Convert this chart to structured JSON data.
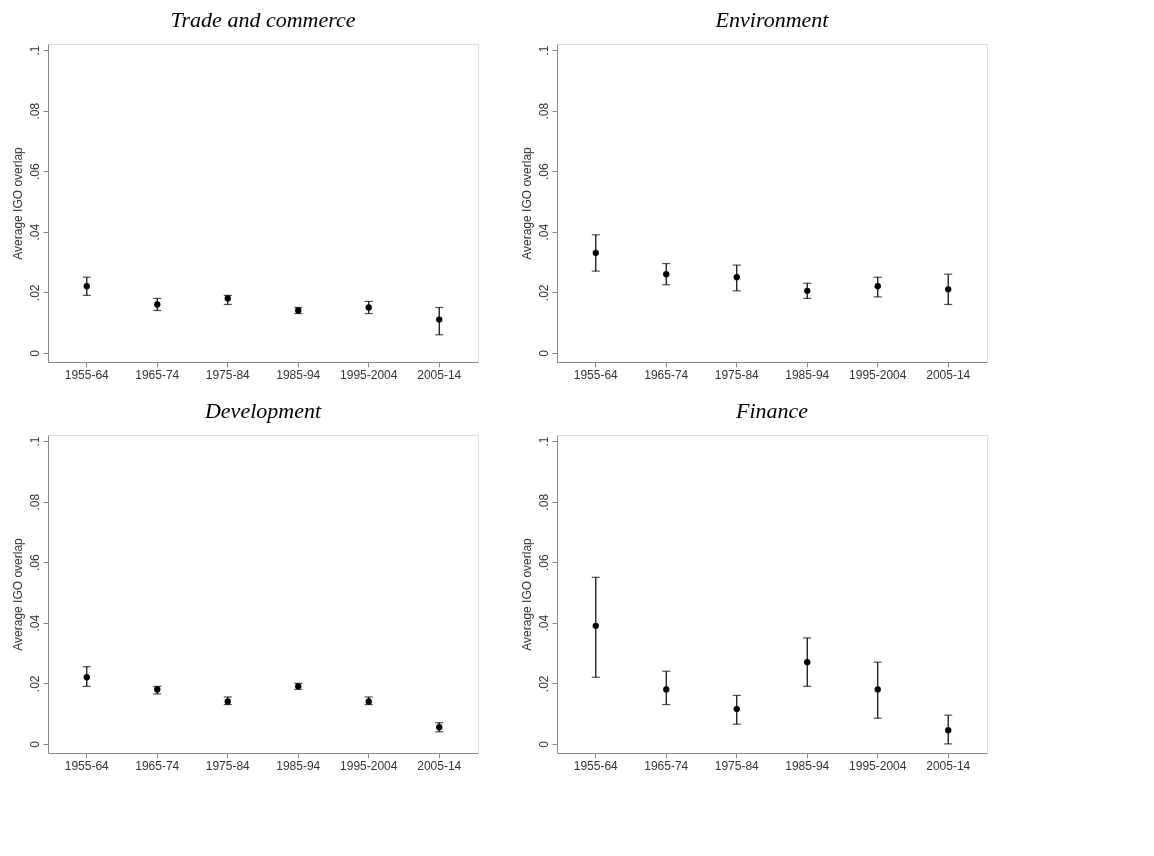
{
  "chart_data": [
    {
      "type": "scatter",
      "title": "Trade and commerce",
      "ylabel": "Average IGO overlap",
      "categories": [
        "1955-64",
        "1965-74",
        "1975-84",
        "1985-94",
        "1995-2004",
        "2005-14"
      ],
      "marker": "circle",
      "grid": false,
      "ylim": [
        -0.003,
        0.102
      ],
      "yticks": [
        0,
        {
          "value": 0.02,
          "label": ".02"
        },
        {
          "value": 0.04,
          "label": ".04"
        },
        {
          "value": 0.06,
          "label": ".06"
        },
        {
          "value": 0.08,
          "label": ".08"
        },
        {
          "value": 0.1,
          "label": ".1"
        }
      ],
      "series": [
        {
          "color": "#000000",
          "values": [
            0.022,
            0.016,
            0.018,
            0.014,
            0.015,
            0.011
          ],
          "errors": [
            [
              0.019,
              0.025
            ],
            [
              0.014,
              0.018
            ],
            [
              0.016,
              0.019
            ],
            [
              0.013,
              0.015
            ],
            [
              0.013,
              0.017
            ],
            [
              0.006,
              0.015
            ]
          ]
        }
      ]
    },
    {
      "type": "scatter",
      "title": "Environment",
      "ylabel": "Average IGO overlap",
      "categories": [
        "1955-64",
        "1965-74",
        "1975-84",
        "1985-94",
        "1995-2004",
        "2005-14"
      ],
      "marker": "circle",
      "grid": false,
      "ylim": [
        -0.003,
        0.102
      ],
      "yticks": [
        0,
        {
          "value": 0.02,
          "label": ".02"
        },
        {
          "value": 0.04,
          "label": ".04"
        },
        {
          "value": 0.06,
          "label": ".06"
        },
        {
          "value": 0.08,
          "label": ".08"
        },
        {
          "value": 0.1,
          "label": ".1"
        }
      ],
      "series": [
        {
          "color": "#000000",
          "values": [
            0.033,
            0.026,
            0.025,
            0.0205,
            0.022,
            0.021
          ],
          "errors": [
            [
              0.027,
              0.039
            ],
            [
              0.0225,
              0.0295
            ],
            [
              0.0205,
              0.029
            ],
            [
              0.018,
              0.023
            ],
            [
              0.0185,
              0.025
            ],
            [
              0.016,
              0.026
            ]
          ]
        }
      ]
    },
    {
      "type": "scatter",
      "title": "Development",
      "ylabel": "Average IGO overlap",
      "categories": [
        "1955-64",
        "1965-74",
        "1975-84",
        "1985-94",
        "1995-2004",
        "2005-14"
      ],
      "marker": "circle",
      "grid": false,
      "ylim": [
        -0.003,
        0.102
      ],
      "yticks": [
        0,
        {
          "value": 0.02,
          "label": ".02"
        },
        {
          "value": 0.04,
          "label": ".04"
        },
        {
          "value": 0.06,
          "label": ".06"
        },
        {
          "value": 0.08,
          "label": ".08"
        },
        {
          "value": 0.1,
          "label": ".1"
        }
      ],
      "series": [
        {
          "color": "#000000",
          "values": [
            0.022,
            0.018,
            0.014,
            0.019,
            0.014,
            0.0055
          ],
          "errors": [
            [
              0.019,
              0.0255
            ],
            [
              0.0165,
              0.019
            ],
            [
              0.013,
              0.0155
            ],
            [
              0.018,
              0.02
            ],
            [
              0.013,
              0.0155
            ],
            [
              0.004,
              0.007
            ]
          ]
        }
      ]
    },
    {
      "type": "scatter",
      "title": "Finance",
      "ylabel": "Average IGO overlap",
      "categories": [
        "1955-64",
        "1965-74",
        "1975-84",
        "1985-94",
        "1995-2004",
        "2005-14"
      ],
      "marker": "circle",
      "grid": false,
      "ylim": [
        -0.003,
        0.102
      ],
      "yticks": [
        0,
        {
          "value": 0.02,
          "label": ".02"
        },
        {
          "value": 0.04,
          "label": ".04"
        },
        {
          "value": 0.06,
          "label": ".06"
        },
        {
          "value": 0.08,
          "label": ".08"
        },
        {
          "value": 0.1,
          "label": ".1"
        }
      ],
      "series": [
        {
          "color": "#000000",
          "values": [
            0.039,
            0.018,
            0.0115,
            0.027,
            0.018,
            0.0045
          ],
          "errors": [
            [
              0.022,
              0.055
            ],
            [
              0.013,
              0.024
            ],
            [
              0.0065,
              0.016
            ],
            [
              0.019,
              0.035
            ],
            [
              0.0085,
              0.027
            ],
            [
              0.0,
              0.0095
            ]
          ]
        }
      ]
    }
  ]
}
